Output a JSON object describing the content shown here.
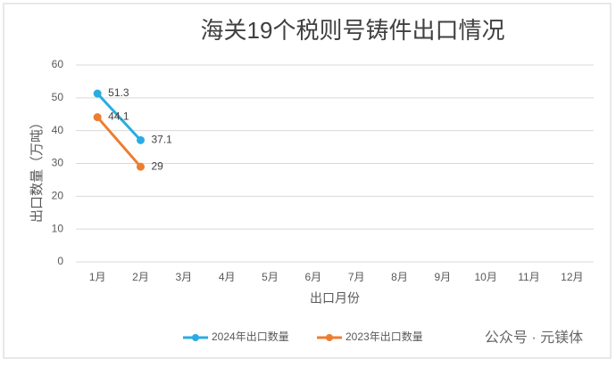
{
  "chart_data": {
    "type": "line",
    "title": "海关19个税则号铸件出口情况",
    "y_label": "出口数量（万吨）",
    "x_label": "出口月份",
    "categories": [
      "1月",
      "2月",
      "3月",
      "4月",
      "5月",
      "6月",
      "7月",
      "8月",
      "9月",
      "10月",
      "11月",
      "12月"
    ],
    "series": [
      {
        "name": "2024年出口数量",
        "color": "#2aace2",
        "values": [
          51.3,
          37.1,
          null,
          null,
          null,
          null,
          null,
          null,
          null,
          null,
          null,
          null
        ]
      },
      {
        "name": "2023年出口数量",
        "color": "#ed7d31",
        "values": [
          44.1,
          29,
          null,
          null,
          null,
          null,
          null,
          null,
          null,
          null,
          null,
          null
        ]
      }
    ],
    "ylim": [
      0,
      60
    ],
    "yticks": [
      0,
      10,
      20,
      30,
      40,
      50,
      60
    ],
    "grid": true,
    "legend": "bottom",
    "watermark": "公众号 · 元镁体"
  }
}
